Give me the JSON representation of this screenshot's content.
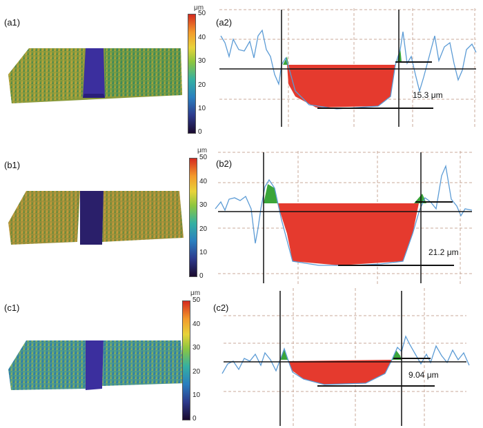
{
  "rows": [
    {
      "surface_label": "(a1)",
      "profile_label": "(a2)",
      "depth_label": "15.3 μm",
      "colorbar": {
        "unit": "μm",
        "ticks": [
          "50",
          "40",
          "30",
          "20",
          "10",
          "0"
        ]
      }
    },
    {
      "surface_label": "(b1)",
      "profile_label": "(b2)",
      "depth_label": "21.2 μm",
      "colorbar": {
        "unit": "μm",
        "ticks": [
          "50",
          "40",
          "30",
          "20",
          "10",
          "0"
        ]
      }
    },
    {
      "surface_label": "(c1)",
      "profile_label": "(c2)",
      "depth_label": "9.04 μm",
      "colorbar": {
        "unit": "μm",
        "ticks": [
          "50",
          "40",
          "30",
          "20",
          "10",
          "0"
        ]
      }
    }
  ],
  "colors": {
    "groove_fill": "#e53a2e",
    "bump_fill": "#3aa53a",
    "profile_line": "#5b9bd5",
    "grid": "#c8a99a",
    "baseline": "#111111",
    "groove_surface": "#3b2f9e"
  }
}
